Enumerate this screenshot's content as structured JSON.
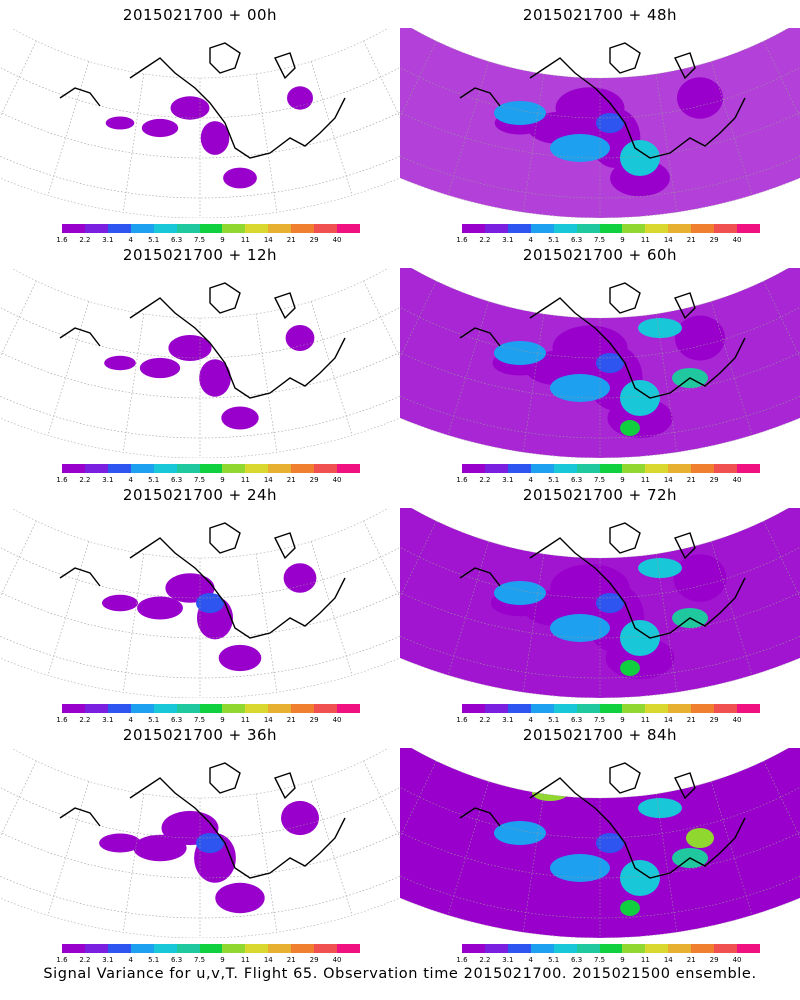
{
  "panels": [
    {
      "title": "2015021700 + 00h",
      "lead": "00h",
      "intensity": 0.05
    },
    {
      "title": "2015021700 + 48h",
      "lead": "48h",
      "intensity": 0.55
    },
    {
      "title": "2015021700 + 12h",
      "lead": "12h",
      "intensity": 0.12
    },
    {
      "title": "2015021700 + 60h",
      "lead": "60h",
      "intensity": 0.65
    },
    {
      "title": "2015021700 + 24h",
      "lead": "24h",
      "intensity": 0.22
    },
    {
      "title": "2015021700 + 72h",
      "lead": "72h",
      "intensity": 0.72
    },
    {
      "title": "2015021700 + 36h",
      "lead": "36h",
      "intensity": 0.35
    },
    {
      "title": "2015021700 + 84h",
      "lead": "84h",
      "intensity": 0.82
    }
  ],
  "colorbar": {
    "labels": [
      "1.6",
      "2.2",
      "3.1",
      "4",
      "5.1",
      "6.3",
      "7.5",
      "9",
      "11",
      "14",
      "21",
      "29",
      "40"
    ],
    "colors": [
      "#9900cc",
      "#7a1fe0",
      "#2f55f0",
      "#1ea0f0",
      "#18c8d8",
      "#20c8a0",
      "#10d040",
      "#90d830",
      "#d8d830",
      "#e8b030",
      "#f08030",
      "#f05050",
      "#f01080"
    ]
  },
  "footer": "Signal Variance for u,v,T. Flight 65. Observation time 2015021700. 2015021500 ensemble."
}
